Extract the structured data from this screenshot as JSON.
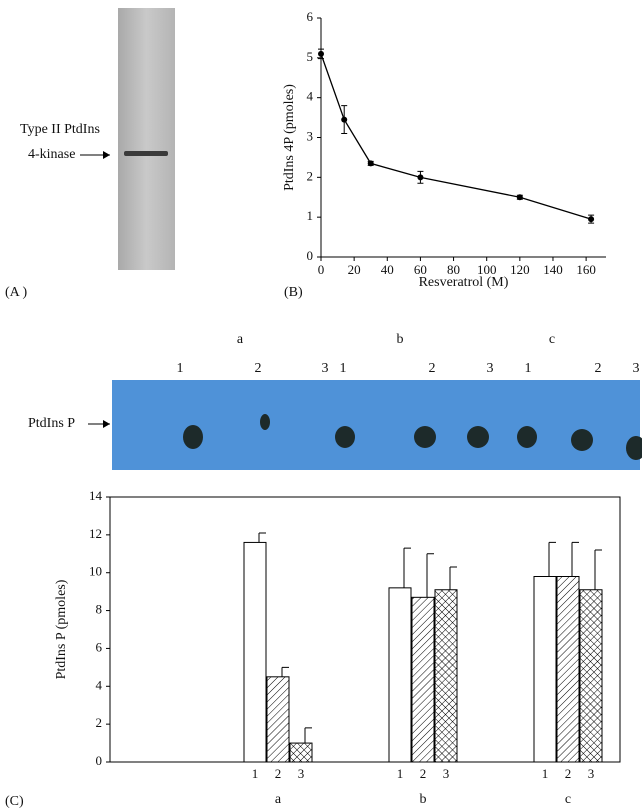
{
  "figure": {
    "panel_labels": [
      "(A )",
      "(B)",
      "(C)"
    ],
    "gel_a": {
      "label_line1": "Type II PtdIns",
      "label_line2": "4-kinase"
    },
    "gel_c": {
      "label": "PtdIns P",
      "groups": [
        "a",
        "b",
        "c"
      ],
      "lanes": [
        "1",
        "2",
        "3",
        "1",
        "2",
        "3",
        "1",
        "2",
        "3"
      ]
    }
  },
  "chart_data": [
    {
      "type": "line",
      "x_label": "Resveratrol (M)",
      "y_label": "PtdIns 4P (pmoles)",
      "x": [
        0,
        14,
        30,
        60,
        120,
        163
      ],
      "series": [
        {
          "color": "#000000",
          "values": [
            5.1,
            3.45,
            2.35,
            2.0,
            1.5,
            0.95
          ],
          "errors": [
            0.12,
            0.35,
            0.05,
            0.15,
            0.05,
            0.1
          ]
        }
      ],
      "xlim": [
        0,
        172
      ],
      "xticks": [
        0,
        20,
        40,
        60,
        80,
        100,
        120,
        140,
        160
      ],
      "ylim": [
        0,
        6
      ],
      "yticks": [
        0,
        1,
        2,
        3,
        4,
        5,
        6
      ]
    },
    {
      "type": "bar",
      "y_label": "PtdIns P (pmoles)",
      "categories": [
        "a",
        "b",
        "c"
      ],
      "series": [
        {
          "name": "1",
          "pattern": "none",
          "color": "#ffffff",
          "values": [
            11.6,
            9.2,
            9.8
          ],
          "errors": [
            0.5,
            2.1,
            1.8
          ]
        },
        {
          "name": "2",
          "pattern": "diagonal",
          "color": "#ffffff",
          "values": [
            4.5,
            8.7,
            9.8
          ],
          "errors": [
            0.5,
            2.3,
            1.8
          ]
        },
        {
          "name": "3",
          "pattern": "crosshatch",
          "color": "#ffffff",
          "values": [
            1.0,
            9.1,
            9.1
          ],
          "errors": [
            0.8,
            1.2,
            2.1
          ]
        }
      ],
      "ylim": [
        0,
        14
      ],
      "yticks": [
        0,
        2,
        4,
        6,
        8,
        10,
        12,
        14
      ]
    }
  ]
}
